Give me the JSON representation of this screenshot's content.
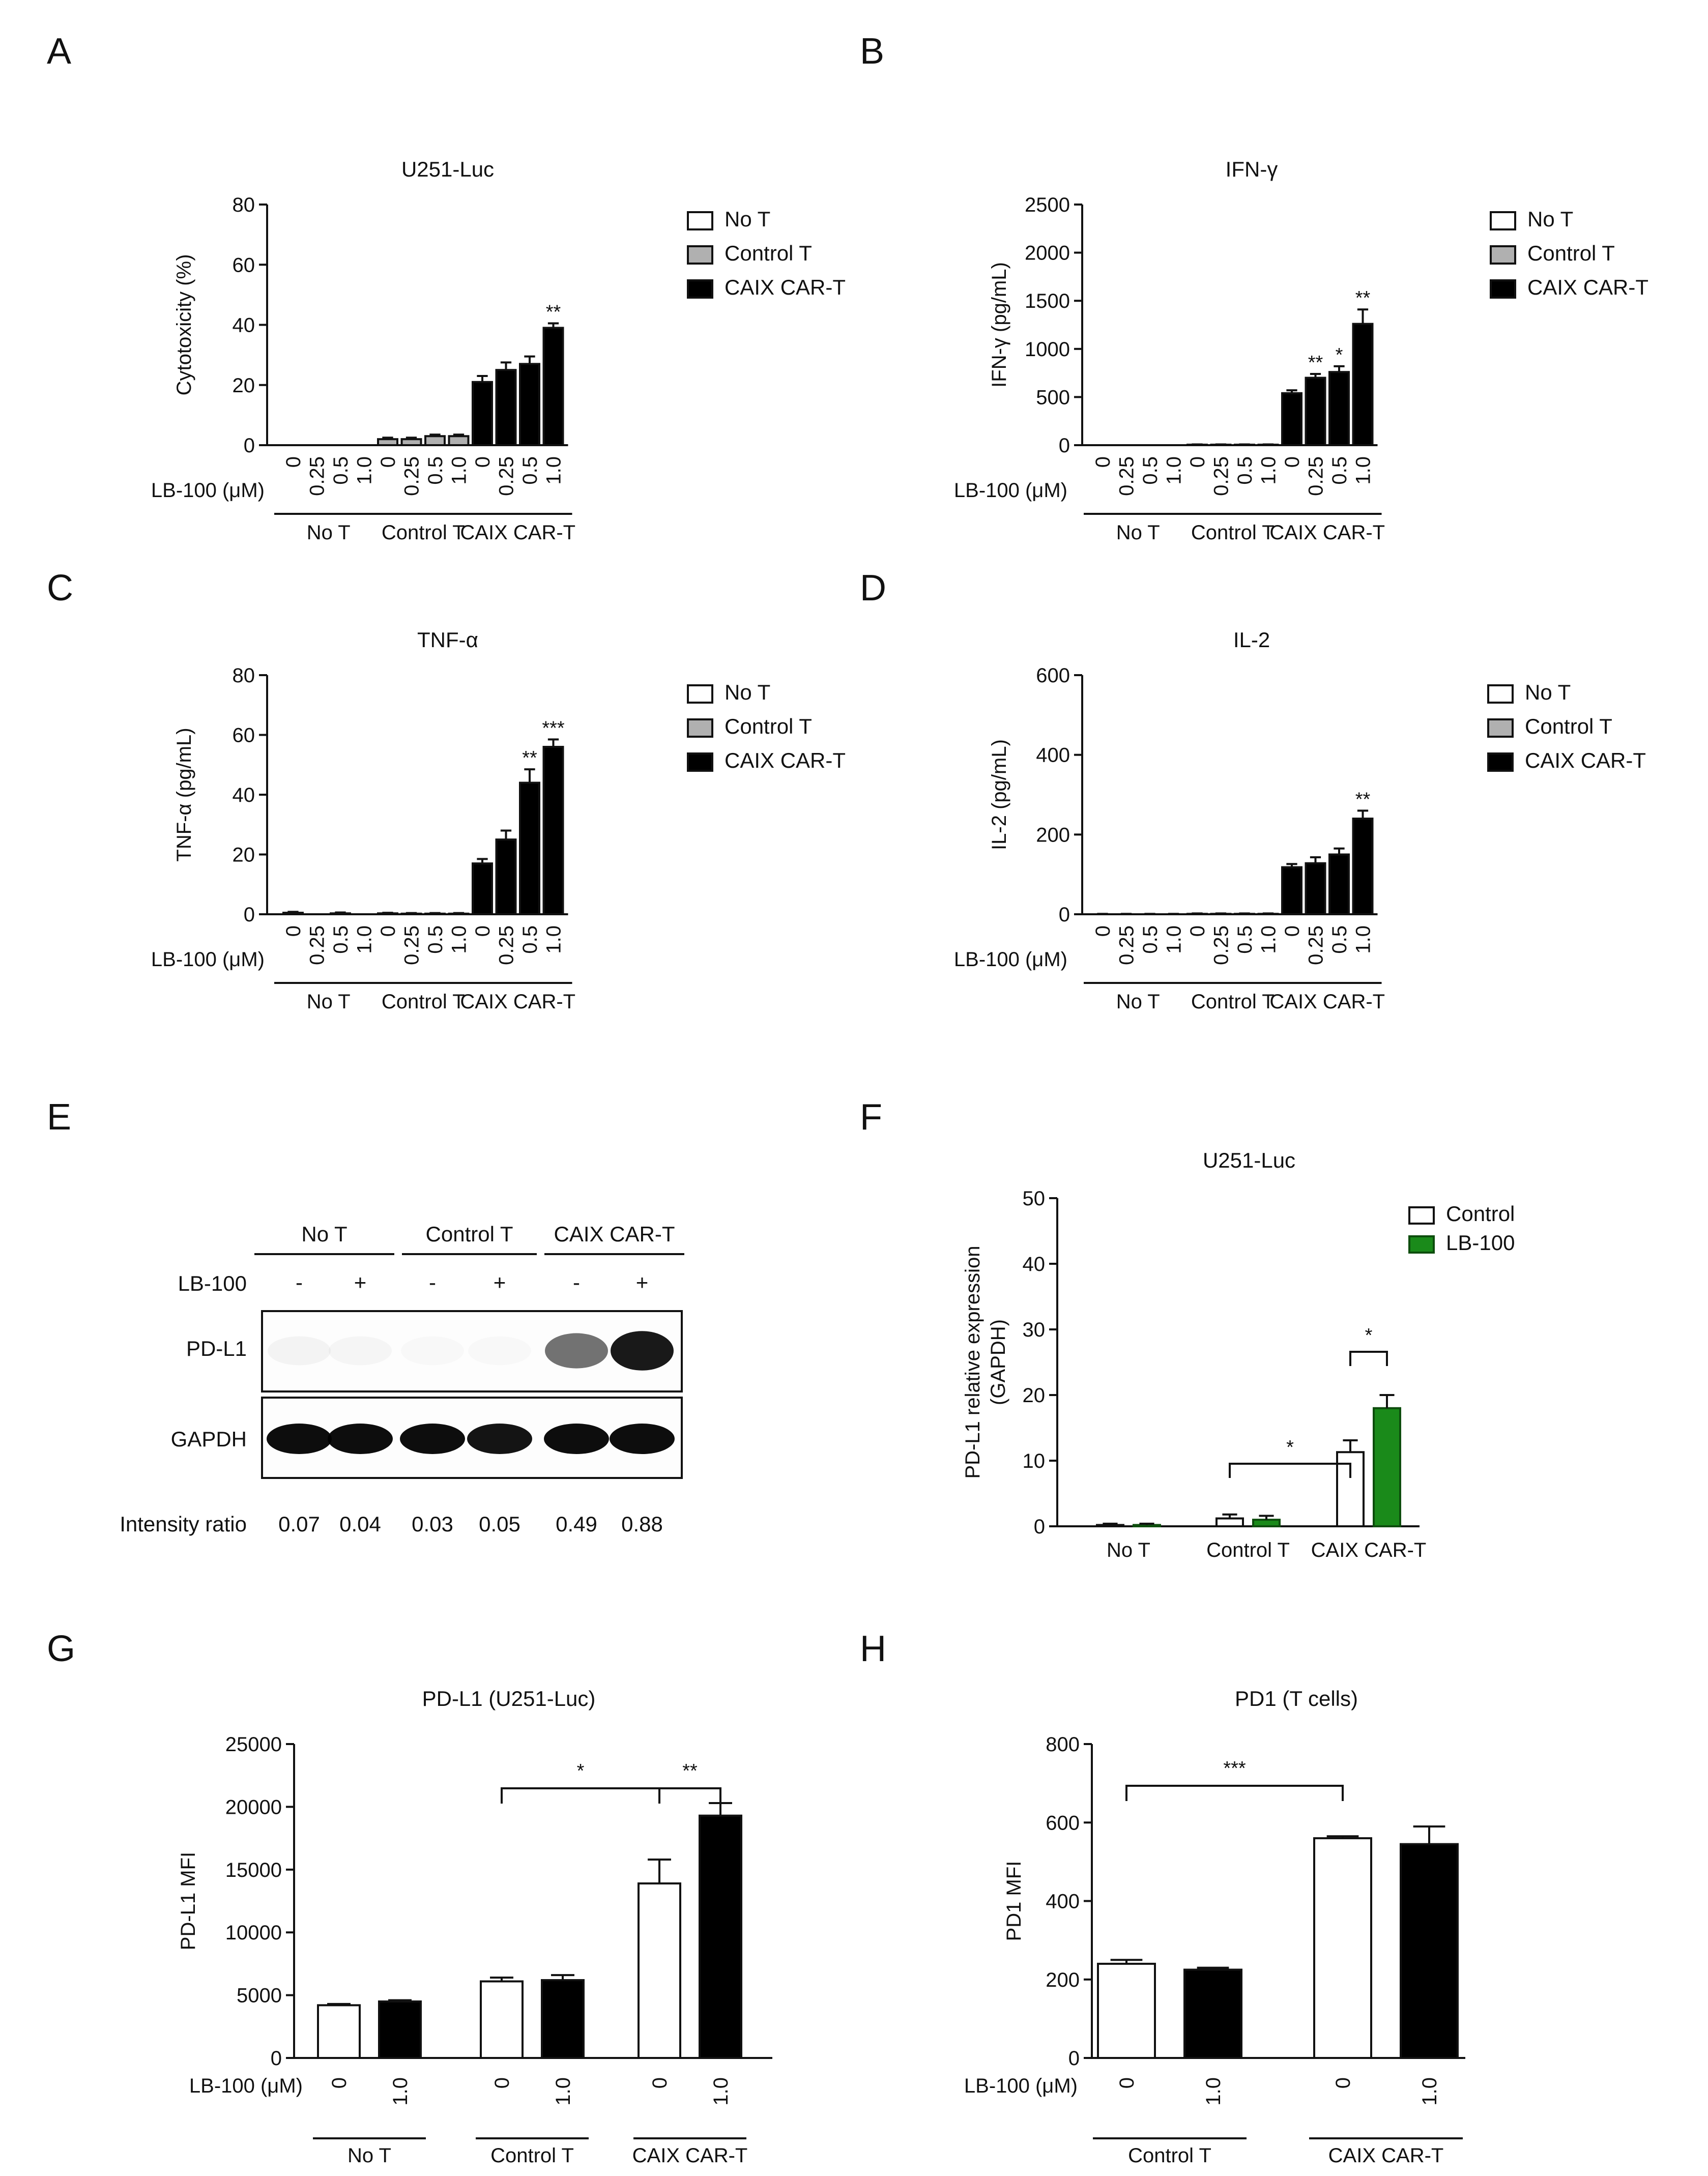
{
  "colors": {
    "no_t": "#ffffff",
    "control_t": "#b0b0b0",
    "car_t": "#000000",
    "lb100": "#1a8a1a",
    "control": "#ffffff"
  },
  "panels": {
    "A": "A",
    "B": "B",
    "C": "C",
    "D": "D",
    "E": "E",
    "F": "F",
    "G": "G",
    "H": "H"
  },
  "chart_data": [
    {
      "id": "A",
      "type": "bar",
      "title": "U251-Luc",
      "ylabel": "Cytotoxicity (%)",
      "ylim": [
        0,
        80
      ],
      "yticks": [
        "0",
        "20",
        "40",
        "60",
        "80"
      ],
      "ytick_values": [
        0,
        20,
        40,
        60,
        80
      ],
      "xlabel_prefix": "LB-100 (μM)",
      "doses": [
        "0",
        "0.25",
        "0.5",
        "1.0"
      ],
      "groups": [
        {
          "name": "No T",
          "color_key": "no_t",
          "values": [
            0,
            0,
            0,
            0
          ],
          "errors": [
            0,
            0,
            0,
            0
          ],
          "stars": [
            "",
            "",
            "",
            ""
          ]
        },
        {
          "name": "Control T",
          "color_key": "control_t",
          "values": [
            2,
            2,
            3,
            3
          ],
          "errors": [
            0.5,
            0.5,
            0.5,
            0.5
          ],
          "stars": [
            "",
            "",
            "",
            ""
          ]
        },
        {
          "name": "CAIX CAR-T",
          "color_key": "car_t",
          "values": [
            21,
            25,
            27,
            39
          ],
          "errors": [
            2,
            2.5,
            2.5,
            1.5
          ],
          "stars": [
            "",
            "",
            "",
            "**"
          ]
        }
      ],
      "legend": [
        {
          "label": "No T",
          "color_key": "no_t"
        },
        {
          "label": "Control T",
          "color_key": "control_t"
        },
        {
          "label": "CAIX CAR-T",
          "color_key": "car_t"
        }
      ]
    },
    {
      "id": "B",
      "type": "bar",
      "title": "IFN-γ",
      "ylabel": "IFN-γ (pg/mL)",
      "ylim": [
        0,
        2500
      ],
      "yticks": [
        "0",
        "500",
        "1000",
        "1500",
        "2000",
        "2500"
      ],
      "ytick_values": [
        0,
        500,
        1000,
        1500,
        2000,
        2500
      ],
      "xlabel_prefix": "LB-100 (μM)",
      "doses": [
        "0",
        "0.25",
        "0.5",
        "1.0"
      ],
      "groups": [
        {
          "name": "No T",
          "color_key": "no_t",
          "values": [
            0,
            0,
            0,
            0
          ],
          "errors": [
            0,
            0,
            0,
            0
          ],
          "stars": [
            "",
            "",
            "",
            ""
          ]
        },
        {
          "name": "Control T",
          "color_key": "control_t",
          "values": [
            5,
            5,
            5,
            5
          ],
          "errors": [
            3,
            3,
            3,
            3
          ],
          "stars": [
            "",
            "",
            "",
            ""
          ]
        },
        {
          "name": "CAIX CAR-T",
          "color_key": "car_t",
          "values": [
            540,
            700,
            760,
            1260
          ],
          "errors": [
            30,
            40,
            60,
            150
          ],
          "stars": [
            "",
            "**",
            "*",
            "**"
          ]
        }
      ],
      "legend": [
        {
          "label": "No T",
          "color_key": "no_t"
        },
        {
          "label": "Control T",
          "color_key": "control_t"
        },
        {
          "label": "CAIX CAR-T",
          "color_key": "car_t"
        }
      ]
    },
    {
      "id": "C",
      "type": "bar",
      "title": "TNF-α",
      "ylabel": "TNF-α (pg/mL)",
      "ylim": [
        0,
        80
      ],
      "yticks": [
        "0",
        "20",
        "40",
        "60",
        "80"
      ],
      "ytick_values": [
        0,
        20,
        40,
        60,
        80
      ],
      "xlabel_prefix": "LB-100 (μM)",
      "doses": [
        "0",
        "0.25",
        "0.5",
        "1.0"
      ],
      "groups": [
        {
          "name": "No T",
          "color_key": "no_t",
          "values": [
            0.5,
            0,
            0.3,
            0
          ],
          "errors": [
            0.3,
            0,
            0.3,
            0
          ],
          "stars": [
            "",
            "",
            "",
            ""
          ]
        },
        {
          "name": "Control T",
          "color_key": "control_t",
          "values": [
            0.3,
            0.2,
            0.2,
            0.2
          ],
          "errors": [
            0.2,
            0.2,
            0.2,
            0.2
          ],
          "stars": [
            "",
            "",
            "",
            ""
          ]
        },
        {
          "name": "CAIX CAR-T",
          "color_key": "car_t",
          "values": [
            17,
            25,
            44,
            56
          ],
          "errors": [
            1.5,
            3,
            4.5,
            2.5
          ],
          "stars": [
            "",
            "",
            "**",
            "***"
          ]
        }
      ],
      "legend": [
        {
          "label": "No T",
          "color_key": "no_t"
        },
        {
          "label": "Control T",
          "color_key": "control_t"
        },
        {
          "label": "CAIX CAR-T",
          "color_key": "car_t"
        }
      ]
    },
    {
      "id": "D",
      "type": "bar",
      "title": "IL-2",
      "ylabel": "IL-2 (pg/mL)",
      "ylim": [
        0,
        600
      ],
      "yticks": [
        "0",
        "200",
        "400",
        "600"
      ],
      "ytick_values": [
        0,
        200,
        400,
        600
      ],
      "xlabel_prefix": "LB-100 (μM)",
      "doses": [
        "0",
        "0.25",
        "0.5",
        "1.0"
      ],
      "groups": [
        {
          "name": "No T",
          "color_key": "no_t",
          "values": [
            0,
            0,
            0,
            0
          ],
          "errors": [
            1,
            1,
            1,
            1
          ],
          "stars": [
            "",
            "",
            "",
            ""
          ]
        },
        {
          "name": "Control T",
          "color_key": "control_t",
          "values": [
            1,
            1,
            1,
            1
          ],
          "errors": [
            1,
            1,
            1,
            1
          ],
          "stars": [
            "",
            "",
            "",
            ""
          ]
        },
        {
          "name": "CAIX CAR-T",
          "color_key": "car_t",
          "values": [
            118,
            128,
            150,
            240
          ],
          "errors": [
            8,
            15,
            15,
            20
          ],
          "stars": [
            "",
            "",
            "",
            "**"
          ]
        }
      ],
      "legend": [
        {
          "label": "No T",
          "color_key": "no_t"
        },
        {
          "label": "Control T",
          "color_key": "control_t"
        },
        {
          "label": "CAIX CAR-T",
          "color_key": "car_t"
        }
      ]
    },
    {
      "id": "F",
      "type": "bar",
      "title": "U251-Luc",
      "ylabel": "PD-L1 relative expression",
      "ylabel2": "(GAPDH)",
      "ylim": [
        0,
        50
      ],
      "yticks": [
        "0",
        "10",
        "20",
        "30",
        "40",
        "50"
      ],
      "ytick_values": [
        0,
        10,
        20,
        30,
        40,
        50
      ],
      "categories": [
        "No T",
        "Control T",
        "CAIX CAR-T"
      ],
      "series": [
        {
          "name": "Control",
          "color_key": "control",
          "values": [
            0.2,
            1.2,
            11.3
          ],
          "errors": [
            0.2,
            0.6,
            1.8
          ]
        },
        {
          "name": "LB-100",
          "color_key": "lb100",
          "values": [
            0.2,
            1.0,
            18.0
          ],
          "errors": [
            0.2,
            0.6,
            2.0
          ]
        }
      ],
      "brackets": [
        {
          "from": "Control T:Control",
          "to": "CAIX CAR-T:Control",
          "label": "*"
        },
        {
          "from": "CAIX CAR-T:Control",
          "to": "CAIX CAR-T:LB-100",
          "label": "*"
        }
      ]
    },
    {
      "id": "G",
      "type": "bar",
      "title": "PD-L1 (U251-Luc)",
      "ylabel": "PD-L1 MFI",
      "ylim": [
        0,
        25000
      ],
      "yticks": [
        "0",
        "5000",
        "10000",
        "15000",
        "20000",
        "25000"
      ],
      "ytick_values": [
        0,
        5000,
        10000,
        15000,
        20000,
        25000
      ],
      "xlabel_prefix": "LB-100 (μM)",
      "doses": [
        "0",
        "1.0"
      ],
      "categories": [
        "No T",
        "Control T",
        "CAIX CAR-T"
      ],
      "values": [
        [
          4200,
          4500
        ],
        [
          6100,
          6200
        ],
        [
          13900,
          19300
        ]
      ],
      "errors": [
        [
          100,
          100
        ],
        [
          300,
          400
        ],
        [
          1900,
          1000
        ]
      ],
      "brackets": [
        {
          "from": "Control T:0",
          "to": "CAIX CAR-T:0",
          "label": "*"
        },
        {
          "from": "CAIX CAR-T:0",
          "to": "CAIX CAR-T:1.0",
          "label": "**"
        }
      ]
    },
    {
      "id": "H",
      "type": "bar",
      "title": "PD1 (T cells)",
      "ylabel": "PD1 MFI",
      "ylim": [
        0,
        800
      ],
      "yticks": [
        "0",
        "200",
        "400",
        "600",
        "800"
      ],
      "ytick_values": [
        0,
        200,
        400,
        600,
        800
      ],
      "xlabel_prefix": "LB-100 (μM)",
      "doses": [
        "0",
        "1.0"
      ],
      "categories": [
        "Control T",
        "CAIX CAR-T"
      ],
      "values": [
        [
          240,
          225
        ],
        [
          560,
          545
        ]
      ],
      "errors": [
        [
          10,
          5
        ],
        [
          5,
          45
        ]
      ],
      "brackets": [
        {
          "from": "Control T:0",
          "to": "CAIX CAR-T:0",
          "label": "***"
        }
      ]
    }
  ],
  "western_blot": {
    "groups": [
      "No T",
      "Control T",
      "CAIX CAR-T"
    ],
    "lb100_label": "LB-100",
    "lb100_signs": [
      "-",
      "+",
      "-",
      "+",
      "-",
      "+"
    ],
    "row_labels": [
      "PD-L1",
      "GAPDH"
    ],
    "pdl1_band_strength": [
      0.04,
      0.03,
      0.02,
      0.02,
      0.55,
      0.9
    ],
    "gapdh_band_strength": [
      0.95,
      0.95,
      0.95,
      0.92,
      0.95,
      0.95
    ],
    "intensity_label": "Intensity ratio",
    "intensity_ratios": [
      "0.07",
      "0.04",
      "0.03",
      "0.05",
      "0.49",
      "0.88"
    ]
  }
}
